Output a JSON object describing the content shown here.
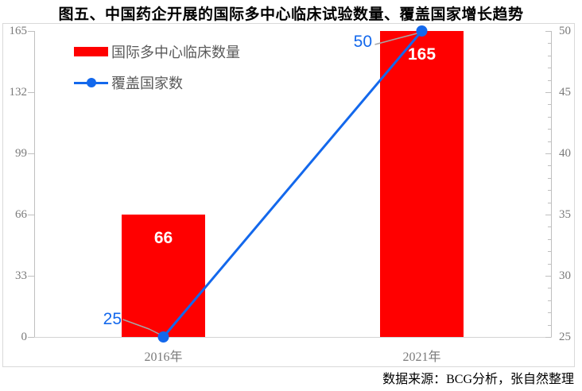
{
  "chart_data": {
    "type": "combo",
    "title": "图五、中国药企开展的国际多中心临床试验数量、覆盖国家增长趋势",
    "categories": [
      "2016年",
      "2021年"
    ],
    "series": [
      {
        "name": "国际多中心临床数量",
        "chart_type": "bar",
        "axis": "left",
        "color": "#FF0000",
        "values": [
          66,
          165
        ],
        "data_labels": [
          "66",
          "165"
        ],
        "data_label_color": "#FFFFFF"
      },
      {
        "name": "覆盖国家数",
        "chart_type": "line",
        "axis": "right",
        "color": "#1368EC",
        "marker": "circle",
        "values": [
          25,
          50
        ],
        "data_labels": [
          "25",
          "50"
        ]
      }
    ],
    "left_axis": {
      "min": 0,
      "max": 165,
      "ticks": [
        165,
        132,
        99,
        66,
        33,
        0
      ]
    },
    "right_axis": {
      "min": 25,
      "max": 50,
      "ticks": [
        50,
        45,
        40,
        35,
        30,
        25
      ],
      "minor_tick_step": 1
    },
    "grid": false,
    "legend_position": "inside-top-left",
    "style": {
      "axis_label_color": "#7A7A7A",
      "legend_text_color": "#5A5A5A",
      "axis_line_color": "#BFBFBF",
      "baseline_color": "#D4D4D4",
      "frame_border_color": "#D9D9D9",
      "leader_line_color": "#A6A6A6",
      "title_color": "#000000"
    }
  },
  "source": "数据来源：BCG分析，张自然整理"
}
